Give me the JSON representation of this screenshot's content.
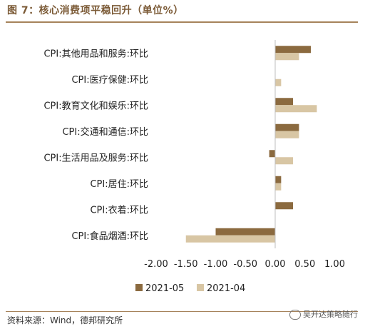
{
  "figure": {
    "title": "图 7：核心消费项平稳回升（单位%）",
    "source": "资料来源：Wind，德邦研究所",
    "watermark": "吴开达策略随行"
  },
  "colors": {
    "series_may": "#8b6a3f",
    "series_apr": "#d8c6a4",
    "rule": "#a6835b",
    "title": "#7b5a36"
  },
  "chart_data": {
    "type": "bar",
    "orientation": "horizontal",
    "categories": [
      "CPI:其他用品和服务:环比",
      "CPI:医疗保健:环比",
      "CPI:教育文化和娱乐:环比",
      "CPI:交通和通信:环比",
      "CPI:生活用品及服务:环比",
      "CPI:居住:环比",
      "CPI:衣着:环比",
      "CPI:食品烟酒:环比"
    ],
    "series": [
      {
        "name": "2021-05",
        "values": [
          0.6,
          0.0,
          0.3,
          0.4,
          -0.1,
          0.1,
          0.3,
          -1.0
        ]
      },
      {
        "name": "2021-04",
        "values": [
          0.4,
          0.1,
          0.7,
          0.4,
          0.3,
          0.1,
          0.0,
          -1.5
        ]
      }
    ],
    "xlim": [
      -2.0,
      1.0
    ],
    "xticks": [
      "-2.00",
      "-1.50",
      "-1.00",
      "-0.50",
      "0.00",
      "0.50",
      "1.00"
    ],
    "legend_position": "bottom",
    "grid": false
  }
}
